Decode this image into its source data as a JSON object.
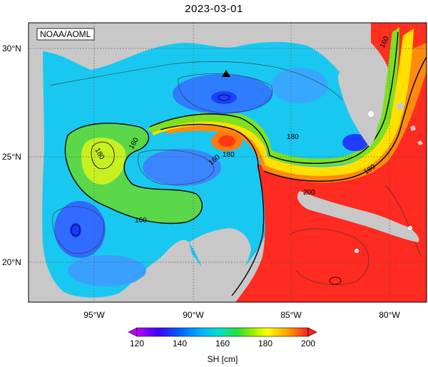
{
  "title": "2023-03-01",
  "credit": "NOAA/AOML",
  "lat_labels": [
    "30°N",
    "25°N",
    "20°N"
  ],
  "lon_labels": [
    "95°W",
    "90°W",
    "85°W",
    "80°W"
  ],
  "contour_labels": [
    "180",
    "160",
    "180",
    "160",
    "180",
    "180",
    "160",
    "200",
    "160"
  ],
  "colorbar": {
    "label": "SH [cm]",
    "ticks": [
      "120",
      "140",
      "160",
      "180",
      "200"
    ],
    "stops": [
      "#c000ff",
      "#4000ff",
      "#0060ff",
      "#00b0ff",
      "#00e0d0",
      "#20e040",
      "#a0f000",
      "#ffff00",
      "#ffa000",
      "#ff2020"
    ]
  },
  "colors": {
    "land": "#c8c8c8",
    "frame": "#000000",
    "grid": "#555555"
  }
}
